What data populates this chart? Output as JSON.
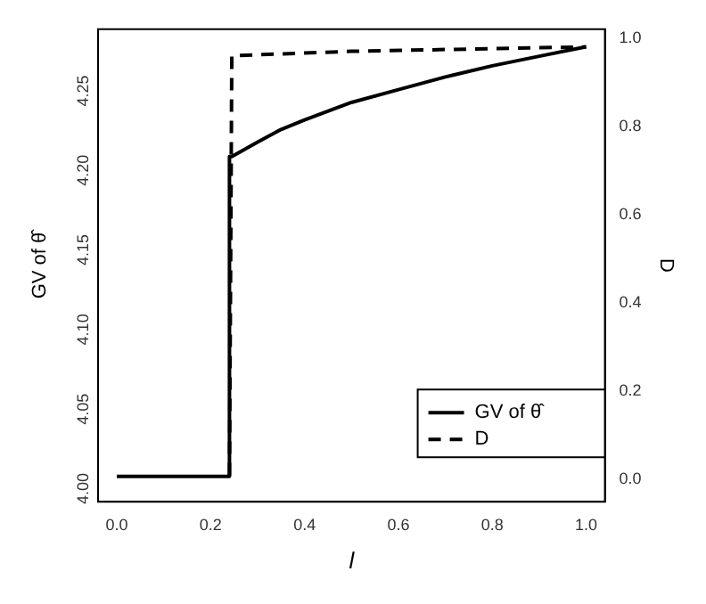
{
  "chart_data": {
    "type": "line",
    "xlabel": "l",
    "ylabel": "GV of θ̂",
    "y2label": "D",
    "xlim": [
      -0.04,
      1.04
    ],
    "xticks": [
      {
        "value": 0,
        "label": "0.0"
      },
      0.2,
      0.4,
      0.6,
      0.8,
      {
        "value": 1,
        "label": "1.0"
      }
    ],
    "ylim": [
      3.992,
      4.289
    ],
    "yticks": [
      {
        "value": 4,
        "label": "4.00"
      },
      4.05,
      {
        "value": 4.1,
        "label": "4.10"
      },
      4.15,
      {
        "value": 4.2,
        "label": "4.20"
      },
      4.25
    ],
    "y2lim": [
      -0.05,
      1.02
    ],
    "y2ticks": [
      {
        "value": 0,
        "label": "0.0"
      },
      0.2,
      0.4,
      0.6,
      0.8,
      {
        "value": 1,
        "label": "1.0"
      }
    ],
    "grid": false,
    "legend": "bottom right",
    "marker": "none",
    "series": [
      {
        "name": "GV of θ̂",
        "color": "#000000",
        "line_style": "solid",
        "x": [
          0,
          0.24,
          0.24,
          0.245,
          0.3,
          0.35,
          0.4,
          0.5,
          0.6,
          0.7,
          0.8,
          0.9,
          1.0
        ],
        "values": [
          4.008,
          4.008,
          4.209,
          4.209,
          4.218,
          4.226,
          4.232,
          4.243,
          4.251,
          4.259,
          4.266,
          4.272,
          4.278
        ]
      },
      {
        "name": "D",
        "color": "#000000",
        "line_style": "dashed",
        "axis": "y2",
        "x": [
          0.24,
          0.245,
          0.5,
          1.0
        ],
        "values": [
          0.01,
          0.96,
          0.97,
          0.98
        ]
      }
    ]
  }
}
